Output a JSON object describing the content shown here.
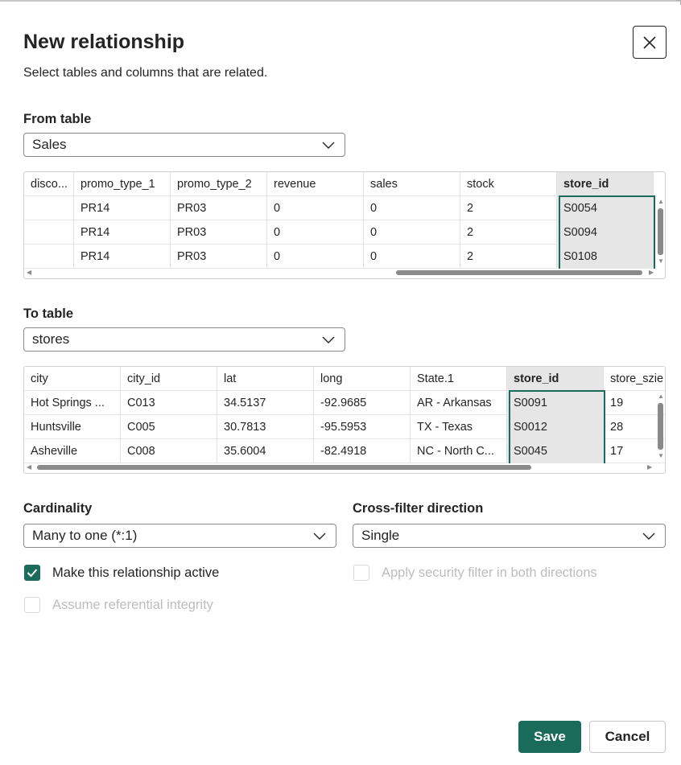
{
  "dialog": {
    "title": "New relationship",
    "subtitle": "Select tables and columns that are related.",
    "close_icon": "close-icon"
  },
  "from_table": {
    "label": "From table",
    "selected": "Sales",
    "columns": [
      "disco...",
      "promo_type_1",
      "promo_type_2",
      "revenue",
      "sales",
      "stock",
      "store_id"
    ],
    "rows": [
      [
        "",
        "PR14",
        "PR03",
        "0",
        "0",
        "2",
        "S0054"
      ],
      [
        "",
        "PR14",
        "PR03",
        "0",
        "0",
        "2",
        "S0094"
      ],
      [
        "",
        "PR14",
        "PR03",
        "0",
        "0",
        "2",
        "S0108"
      ]
    ],
    "selected_column": "store_id"
  },
  "to_table": {
    "label": "To table",
    "selected": "stores",
    "columns": [
      "city",
      "city_id",
      "lat",
      "long",
      "State.1",
      "store_id",
      "store_szie"
    ],
    "rows": [
      [
        "Hot Springs ...",
        "C013",
        "34.5137",
        "-92.9685",
        "AR - Arkansas",
        "S0091",
        "19"
      ],
      [
        "Huntsville",
        "C005",
        "30.7813",
        "-95.5953",
        "TX - Texas",
        "S0012",
        "28"
      ],
      [
        "Asheville",
        "C008",
        "35.6004",
        "-82.4918",
        "NC - North C...",
        "S0045",
        "17"
      ]
    ],
    "selected_column": "store_id"
  },
  "cardinality": {
    "label": "Cardinality",
    "selected": "Many to one (*:1)"
  },
  "cross_filter": {
    "label": "Cross-filter direction",
    "selected": "Single"
  },
  "options": {
    "active": {
      "label": "Make this relationship active",
      "checked": true
    },
    "security": {
      "label": "Apply security filter in both directions",
      "checked": false,
      "disabled": true
    },
    "referential": {
      "label": "Assume referential integrity",
      "checked": false,
      "disabled": true
    }
  },
  "buttons": {
    "save": "Save",
    "cancel": "Cancel"
  },
  "colors": {
    "accent": "#1b6b5a",
    "disabled_text": "#bdbdbd"
  }
}
